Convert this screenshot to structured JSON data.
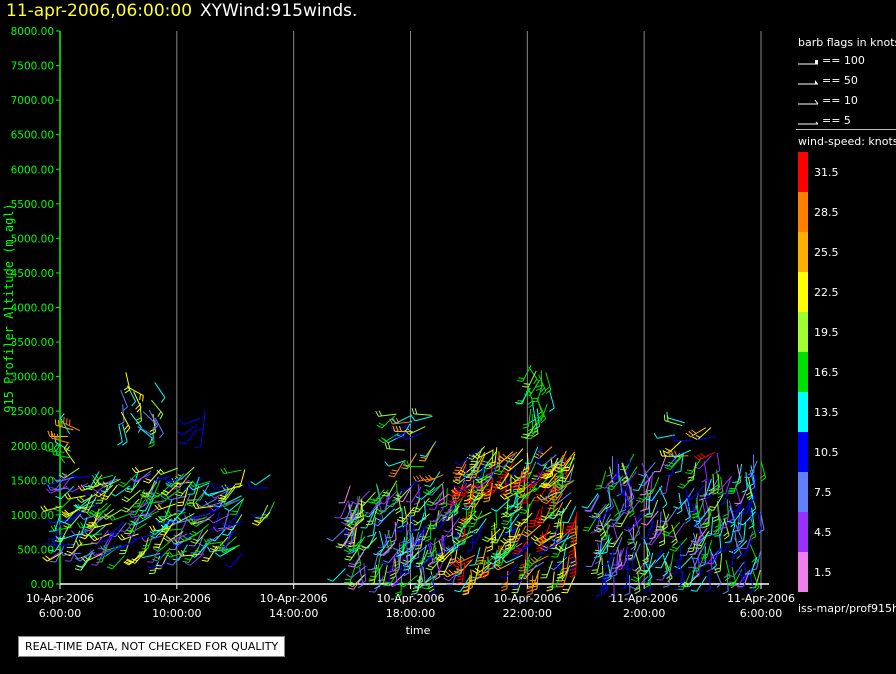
{
  "header": {
    "timestamp": "11-apr-2006,06:00:00",
    "plot_name": "XYWind:915winds."
  },
  "legend": {
    "barb_title": "barb flags in knots",
    "barb_items": [
      "== 100",
      "== 50",
      "== 10",
      "== 5"
    ],
    "colorbar_title": "wind-speed: knots",
    "colorbar": [
      {
        "label": "31.5",
        "color": "#ff0000"
      },
      {
        "label": "28.5",
        "color": "#ff8000"
      },
      {
        "label": "25.5",
        "color": "#ffb000"
      },
      {
        "label": "22.5",
        "color": "#ffff00"
      },
      {
        "label": "19.5",
        "color": "#a0ff30"
      },
      {
        "label": "16.5",
        "color": "#00e000"
      },
      {
        "label": "13.5",
        "color": "#00ffff"
      },
      {
        "label": "10.5",
        "color": "#0000ff"
      },
      {
        "label": "7.5",
        "color": "#6080ff"
      },
      {
        "label": "4.5",
        "color": "#9a30ff"
      },
      {
        "label": "1.5",
        "color": "#ee80ee"
      }
    ],
    "source": "iss-mapr/prof915h"
  },
  "notice": "REAL-TIME DATA, NOT CHECKED FOR QUALITY",
  "colors": {
    "axis": "#00ff00",
    "grid": "#888888",
    "background": "#000000",
    "title_time": "#ffff33"
  },
  "chart_data": {
    "type": "wind-barb time-height",
    "title": "11-apr-2006,06:00:00 XYWind:915winds.",
    "xlabel": "time",
    "ylabel": "915 Profiler Altitude (m agl)",
    "ylim": [
      0,
      8000
    ],
    "xlim": [
      "2006-04-10 06:00",
      "2006-04-11 06:00"
    ],
    "yticks": [
      "0.00",
      "500.00",
      "1000.00",
      "1500.00",
      "2000.00",
      "2500.00",
      "3000.00",
      "3500.00",
      "4000.00",
      "4500.00",
      "5000.00",
      "5500.00",
      "6000.00",
      "6500.00",
      "7000.00",
      "7500.00",
      "8000.00"
    ],
    "xticks": [
      {
        "date": "10-Apr-2006",
        "time": "6:00:00",
        "hour": 0
      },
      {
        "date": "10-Apr-2006",
        "time": "10:00:00",
        "hour": 4
      },
      {
        "date": "10-Apr-2006",
        "time": "14:00:00",
        "hour": 8
      },
      {
        "date": "10-Apr-2006",
        "time": "18:00:00",
        "hour": 12
      },
      {
        "date": "10-Apr-2006",
        "time": "22:00:00",
        "hour": 16
      },
      {
        "date": "11-Apr-2006",
        "time": "2:00:00",
        "hour": 20
      },
      {
        "date": "11-Apr-2006",
        "time": "6:00:00",
        "hour": 24
      }
    ],
    "grid": "vertical",
    "segments": [
      {
        "t0": 0.0,
        "t1": 6.4,
        "zmin": 400,
        "zmax": 1700,
        "speed": [
          3,
          24
        ],
        "dir": 230,
        "dense": 260
      },
      {
        "t0": 0.1,
        "t1": 0.7,
        "zmin": 1700,
        "zmax": 2250,
        "speed": [
          14,
          30
        ],
        "dir": 300,
        "dense": 10
      },
      {
        "t0": 1.9,
        "t1": 3.3,
        "zmin": 2200,
        "zmax": 3100,
        "speed": [
          6,
          24
        ],
        "dir": 150,
        "dense": 20
      },
      {
        "t0": 4.6,
        "t1": 5.0,
        "zmin": 2100,
        "zmax": 2600,
        "speed": [
          8,
          12
        ],
        "dir": 220,
        "dense": 5
      },
      {
        "t0": 6.7,
        "t1": 7.5,
        "zmin": 1000,
        "zmax": 1600,
        "speed": [
          10,
          22
        ],
        "dir": 240,
        "dense": 6
      },
      {
        "t0": 9.7,
        "t1": 13.8,
        "zmin": 100,
        "zmax": 1500,
        "speed": [
          2,
          22
        ],
        "dir": 200,
        "dense": 200
      },
      {
        "t0": 11.3,
        "t1": 13.2,
        "zmin": 1500,
        "zmax": 2600,
        "speed": [
          10,
          30
        ],
        "dir": 240,
        "dense": 25
      },
      {
        "t0": 13.8,
        "t1": 17.8,
        "zmin": 100,
        "zmax": 2000,
        "speed": [
          8,
          32
        ],
        "dir": 210,
        "dense": 260
      },
      {
        "t0": 16.0,
        "t1": 16.8,
        "zmin": 2300,
        "zmax": 3200,
        "speed": [
          14,
          20
        ],
        "dir": 180,
        "dense": 22
      },
      {
        "t0": 18.4,
        "t1": 24.0,
        "zmin": 100,
        "zmax": 1900,
        "speed": [
          2,
          20
        ],
        "dir": 190,
        "dense": 280
      },
      {
        "t0": 21.0,
        "t1": 22.5,
        "zmin": 1800,
        "zmax": 2400,
        "speed": [
          8,
          32
        ],
        "dir": 260,
        "dense": 12
      }
    ]
  }
}
